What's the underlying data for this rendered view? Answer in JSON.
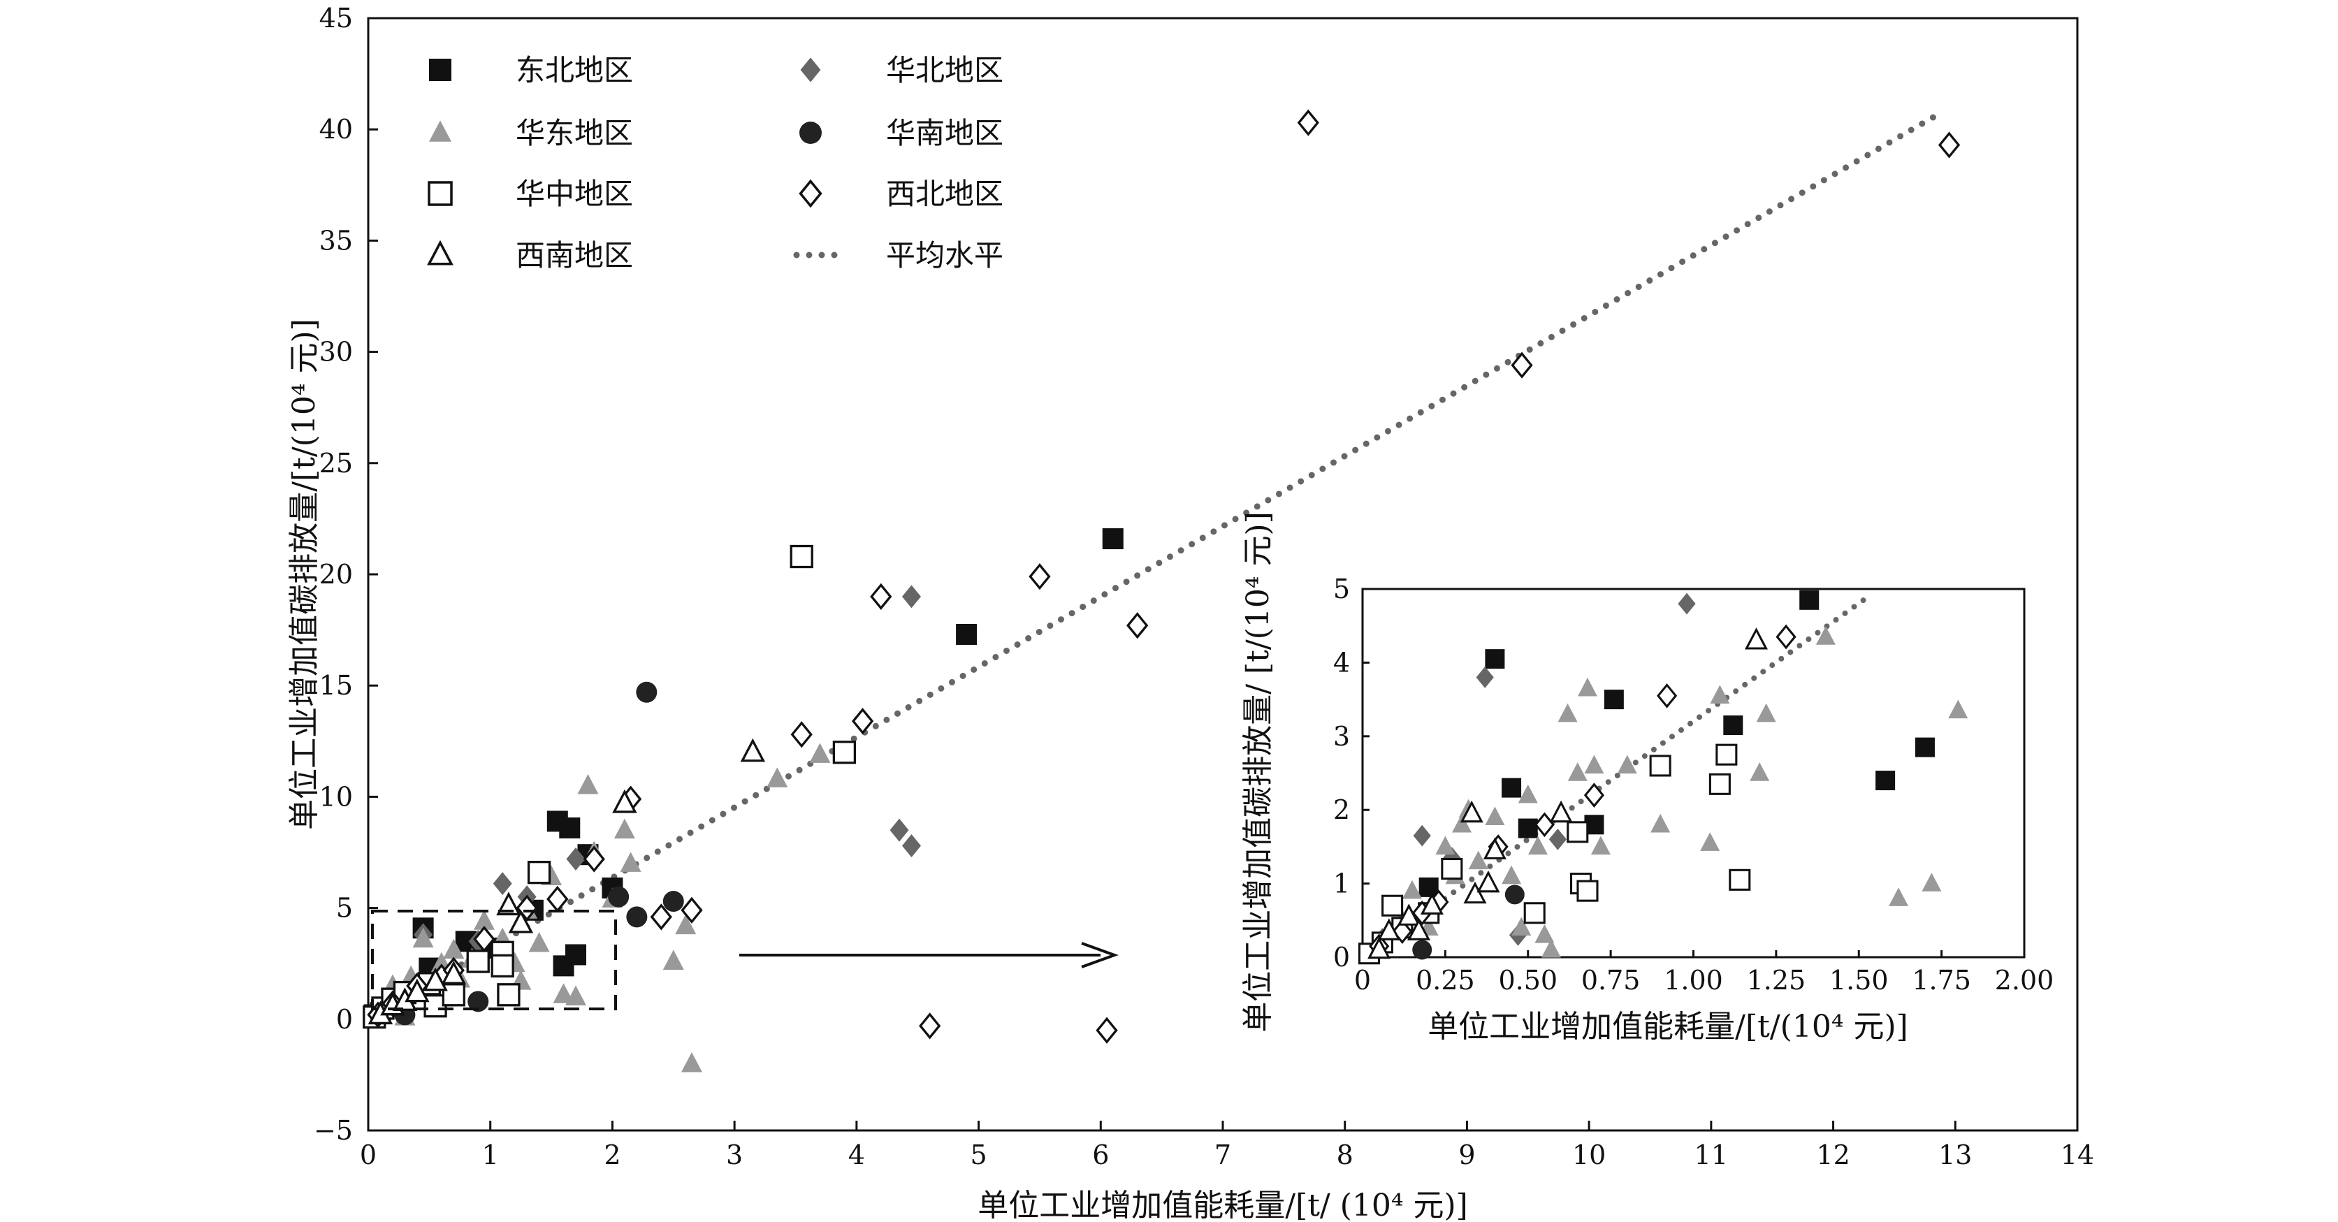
{
  "chart_data": [
    {
      "type": "scatter",
      "title": "",
      "xlabel": "单位工业增加值能耗量/[t/ (10⁴ 元)]",
      "ylabel": "单位工业增加值碳排放量/[t/(10⁴ 元)]",
      "xlim": [
        0,
        14
      ],
      "ylim": [
        -5,
        45
      ],
      "xticks": [
        "0",
        "1",
        "2",
        "3",
        "4",
        "5",
        "6",
        "7",
        "8",
        "9",
        "10",
        "11",
        "12",
        "13",
        "14"
      ],
      "yticks": [
        "−5",
        "0",
        "5",
        "10",
        "15",
        "20",
        "25",
        "30",
        "35",
        "40",
        "45"
      ],
      "legend": [
        {
          "name": "东北地区",
          "marker": "square-filled",
          "color": "#111111"
        },
        {
          "name": "华北地区",
          "marker": "diamond-filled",
          "color": "#666666"
        },
        {
          "name": "华东地区",
          "marker": "triangle-filled",
          "color": "#999999"
        },
        {
          "name": "华南地区",
          "marker": "circle-filled",
          "color": "#222222"
        },
        {
          "name": "华中地区",
          "marker": "square-open",
          "color": "#111111"
        },
        {
          "name": "西北地区",
          "marker": "diamond-open",
          "color": "#111111"
        },
        {
          "name": "西南地区",
          "marker": "triangle-open",
          "color": "#111111"
        },
        {
          "name": "平均水平",
          "marker": "dotted-line",
          "color": "#666666"
        }
      ],
      "trend_line": {
        "name": "平均水平",
        "x": [
          0.05,
          12.9
        ],
        "y": [
          0.2,
          40.8
        ]
      },
      "series": [
        {
          "name": "东北地区",
          "points": [
            [
              0.05,
              0.2
            ],
            [
              0.1,
              0.3
            ],
            [
              0.45,
              4.1
            ],
            [
              0.5,
              2.3
            ],
            [
              0.8,
              3.5
            ],
            [
              1.0,
              3.2
            ],
            [
              1.35,
              4.9
            ],
            [
              1.55,
              8.9
            ],
            [
              1.65,
              8.6
            ],
            [
              1.8,
              7.4
            ],
            [
              1.6,
              2.4
            ],
            [
              1.7,
              2.9
            ],
            [
              2.0,
              5.9
            ],
            [
              4.9,
              17.3
            ],
            [
              6.1,
              21.6
            ]
          ]
        },
        {
          "name": "华北地区",
          "points": [
            [
              0.2,
              0.5
            ],
            [
              0.45,
              3.8
            ],
            [
              0.6,
              2.0
            ],
            [
              0.9,
              3.5
            ],
            [
              1.1,
              6.1
            ],
            [
              1.3,
              5.5
            ],
            [
              1.7,
              7.2
            ],
            [
              4.35,
              8.5
            ],
            [
              4.45,
              7.8
            ],
            [
              4.45,
              19.0
            ]
          ]
        },
        {
          "name": "华东地区",
          "points": [
            [
              0.1,
              0.3
            ],
            [
              0.2,
              1.5
            ],
            [
              0.25,
              0.8
            ],
            [
              0.35,
              1.9
            ],
            [
              0.45,
              3.6
            ],
            [
              0.6,
              2.5
            ],
            [
              0.75,
              1.8
            ],
            [
              0.85,
              2.7
            ],
            [
              0.95,
              4.4
            ],
            [
              1.1,
              3.6
            ],
            [
              1.2,
              2.5
            ],
            [
              1.3,
              4.9
            ],
            [
              1.4,
              3.4
            ],
            [
              1.5,
              6.4
            ],
            [
              1.6,
              1.1
            ],
            [
              1.7,
              1.0
            ],
            [
              1.8,
              10.5
            ],
            [
              1.85,
              7.5
            ],
            [
              2.0,
              5.4
            ],
            [
              2.1,
              8.5
            ],
            [
              2.15,
              7.0
            ],
            [
              2.5,
              2.6
            ],
            [
              2.6,
              4.2
            ],
            [
              2.65,
              -2.0
            ],
            [
              3.35,
              10.8
            ],
            [
              3.7,
              11.9
            ],
            [
              0.3,
              0.1
            ],
            [
              0.55,
              0.9
            ],
            [
              0.7,
              3.1
            ],
            [
              1.25,
              1.7
            ]
          ]
        },
        {
          "name": "华南地区",
          "points": [
            [
              0.3,
              0.2
            ],
            [
              0.9,
              0.8
            ],
            [
              2.05,
              5.5
            ],
            [
              2.2,
              4.6
            ],
            [
              2.28,
              14.7
            ],
            [
              2.5,
              5.3
            ]
          ]
        },
        {
          "name": "华中地区",
          "points": [
            [
              0.05,
              0.1
            ],
            [
              0.12,
              0.5
            ],
            [
              0.2,
              0.9
            ],
            [
              0.3,
              1.2
            ],
            [
              0.5,
              1.6
            ],
            [
              0.55,
              0.6
            ],
            [
              0.7,
              1.1
            ],
            [
              0.9,
              2.6
            ],
            [
              1.1,
              3.0
            ],
            [
              1.1,
              2.4
            ],
            [
              1.15,
              1.1
            ],
            [
              1.4,
              6.6
            ],
            [
              3.55,
              20.8
            ],
            [
              3.9,
              12.0
            ]
          ]
        },
        {
          "name": "西北地区",
          "points": [
            [
              0.08,
              0.2
            ],
            [
              0.2,
              0.7
            ],
            [
              0.4,
              1.5
            ],
            [
              0.6,
              1.9
            ],
            [
              0.7,
              2.2
            ],
            [
              0.95,
              3.6
            ],
            [
              1.3,
              5.0
            ],
            [
              1.55,
              5.4
            ],
            [
              1.85,
              7.2
            ],
            [
              2.15,
              9.9
            ],
            [
              2.4,
              4.6
            ],
            [
              2.65,
              4.9
            ],
            [
              3.55,
              12.8
            ],
            [
              4.05,
              13.4
            ],
            [
              4.2,
              19.0
            ],
            [
              4.6,
              -0.3
            ],
            [
              5.5,
              19.9
            ],
            [
              6.05,
              -0.5
            ],
            [
              6.3,
              17.7
            ],
            [
              7.7,
              40.3
            ],
            [
              9.45,
              29.4
            ],
            [
              12.95,
              39.3
            ]
          ]
        },
        {
          "name": "西南地区",
          "points": [
            [
              0.1,
              0.2
            ],
            [
              0.2,
              0.6
            ],
            [
              0.3,
              0.8
            ],
            [
              0.4,
              1.2
            ],
            [
              0.55,
              1.7
            ],
            [
              0.7,
              2.0
            ],
            [
              1.15,
              5.1
            ],
            [
              1.25,
              4.3
            ],
            [
              2.1,
              9.7
            ],
            [
              3.15,
              12.0
            ]
          ]
        }
      ]
    },
    {
      "type": "scatter",
      "title": "",
      "xlabel": "单位工业增加值能耗量/[t/(10⁴ 元)]",
      "ylabel": "单位工业增加值碳排放量/ [t/(10⁴ 元)]",
      "xlim": [
        0,
        2.0
      ],
      "ylim": [
        0,
        5
      ],
      "xticks": [
        "0",
        "0.25",
        "0.50",
        "0.75",
        "1.00",
        "1.25",
        "1.50",
        "1.75",
        "2.00"
      ],
      "yticks": [
        "0",
        "1",
        "2",
        "3",
        "4",
        "5"
      ],
      "trend_line": {
        "name": "平均水平",
        "x": [
          0.0,
          1.53
        ],
        "y": [
          0.0,
          4.9
        ]
      },
      "series": [
        {
          "name": "东北地区",
          "points": [
            [
              0.4,
              4.05
            ],
            [
              0.45,
              2.3
            ],
            [
              0.5,
              1.75
            ],
            [
              0.7,
              1.8
            ],
            [
              0.76,
              3.5
            ],
            [
              1.12,
              3.15
            ],
            [
              1.35,
              4.85
            ],
            [
              1.58,
              2.4
            ],
            [
              1.7,
              2.85
            ],
            [
              0.2,
              0.95
            ],
            [
              0.02,
              0.05
            ]
          ]
        },
        {
          "name": "华北地区",
          "points": [
            [
              0.18,
              1.65
            ],
            [
              0.27,
              1.35
            ],
            [
              0.37,
              3.8
            ],
            [
              0.47,
              0.3
            ],
            [
              0.59,
              1.6
            ],
            [
              0.98,
              4.8
            ],
            [
              0.06,
              0.25
            ]
          ]
        },
        {
          "name": "华东地区",
          "points": [
            [
              0.05,
              0.1
            ],
            [
              0.12,
              0.5
            ],
            [
              0.15,
              0.9
            ],
            [
              0.2,
              0.4
            ],
            [
              0.25,
              1.5
            ],
            [
              0.28,
              1.1
            ],
            [
              0.3,
              1.8
            ],
            [
              0.32,
              2.0
            ],
            [
              0.35,
              1.3
            ],
            [
              0.4,
              1.9
            ],
            [
              0.45,
              1.1
            ],
            [
              0.48,
              0.4
            ],
            [
              0.5,
              2.2
            ],
            [
              0.53,
              1.5
            ],
            [
              0.55,
              0.3
            ],
            [
              0.57,
              0.1
            ],
            [
              0.62,
              3.3
            ],
            [
              0.65,
              2.5
            ],
            [
              0.68,
              3.65
            ],
            [
              0.7,
              2.6
            ],
            [
              0.72,
              1.5
            ],
            [
              0.8,
              2.6
            ],
            [
              0.9,
              1.8
            ],
            [
              1.05,
              1.55
            ],
            [
              1.08,
              3.55
            ],
            [
              1.2,
              2.5
            ],
            [
              1.22,
              3.3
            ],
            [
              1.4,
              4.35
            ],
            [
              1.62,
              0.8
            ],
            [
              1.72,
              1.0
            ],
            [
              1.8,
              3.35
            ]
          ]
        },
        {
          "name": "华南地区",
          "points": [
            [
              0.18,
              0.1
            ],
            [
              0.46,
              0.85
            ]
          ]
        },
        {
          "name": "华中地区",
          "points": [
            [
              0.02,
              0.05
            ],
            [
              0.06,
              0.2
            ],
            [
              0.09,
              0.7
            ],
            [
              0.12,
              0.4
            ],
            [
              0.2,
              0.6
            ],
            [
              0.27,
              1.2
            ],
            [
              0.52,
              0.6
            ],
            [
              0.65,
              1.7
            ],
            [
              0.66,
              1.0
            ],
            [
              0.68,
              0.9
            ],
            [
              0.9,
              2.6
            ],
            [
              1.08,
              2.35
            ],
            [
              1.1,
              2.75
            ],
            [
              1.14,
              1.05
            ]
          ]
        },
        {
          "name": "西北地区",
          "points": [
            [
              0.05,
              0.15
            ],
            [
              0.12,
              0.35
            ],
            [
              0.18,
              0.6
            ],
            [
              0.23,
              0.75
            ],
            [
              0.41,
              1.5
            ],
            [
              0.55,
              1.8
            ],
            [
              0.7,
              2.2
            ],
            [
              0.92,
              3.55
            ],
            [
              1.28,
              4.35
            ]
          ]
        },
        {
          "name": "西南地区",
          "points": [
            [
              0.05,
              0.1
            ],
            [
              0.08,
              0.35
            ],
            [
              0.14,
              0.55
            ],
            [
              0.17,
              0.35
            ],
            [
              0.21,
              0.7
            ],
            [
              0.34,
              0.85
            ],
            [
              0.38,
              1.0
            ],
            [
              0.4,
              1.45
            ],
            [
              0.33,
              1.95
            ],
            [
              0.6,
              1.95
            ],
            [
              1.19,
              4.3
            ]
          ]
        }
      ]
    }
  ]
}
